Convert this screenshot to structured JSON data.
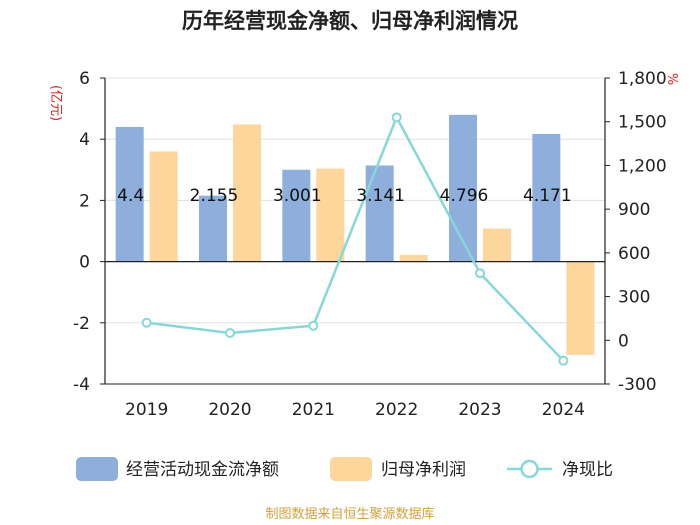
{
  "chart_data": {
    "type": "bar+line",
    "title": "历年经营现金净额、归母净利润情况",
    "categories": [
      "2019",
      "2020",
      "2021",
      "2022",
      "2023",
      "2024"
    ],
    "left_axis": {
      "label": "(亿元)",
      "ylim": [
        -4,
        6
      ],
      "ticks": [
        6,
        4,
        2,
        0,
        -2,
        -4
      ]
    },
    "right_axis": {
      "label": "%",
      "ylim": [
        -300,
        1800
      ],
      "ticks": [
        "1,800",
        "1,500",
        "1,200",
        "900",
        "600",
        "300",
        "0",
        "-300"
      ],
      "tick_values": [
        1800,
        1500,
        1200,
        900,
        600,
        300,
        0,
        -300
      ]
    },
    "series": [
      {
        "name": "经营活动现金流净额",
        "type": "bar",
        "axis": "left",
        "color": "#8eaedb",
        "values": [
          4.4,
          2.155,
          3.001,
          3.141,
          4.796,
          4.171
        ],
        "data_labels": [
          "4.4",
          "2.155",
          "3.001",
          "3.141",
          "4.796",
          "4.171"
        ]
      },
      {
        "name": "归母净利润",
        "type": "bar",
        "axis": "left",
        "color": "#fdd69b",
        "values": [
          3.6,
          4.48,
          3.04,
          0.22,
          1.08,
          -3.05
        ]
      },
      {
        "name": "净现比",
        "type": "line",
        "axis": "right",
        "color": "#86d8d8",
        "values": [
          120,
          50,
          100,
          1530,
          460,
          -140
        ]
      }
    ],
    "legend_position": "bottom",
    "source": "制图数据来自恒生聚源数据库",
    "colors": {
      "title": "#222222",
      "axis_label": "#e02020",
      "source": "#d4a039",
      "grid": "#e0e0e0",
      "axis_text": "#222222"
    }
  }
}
